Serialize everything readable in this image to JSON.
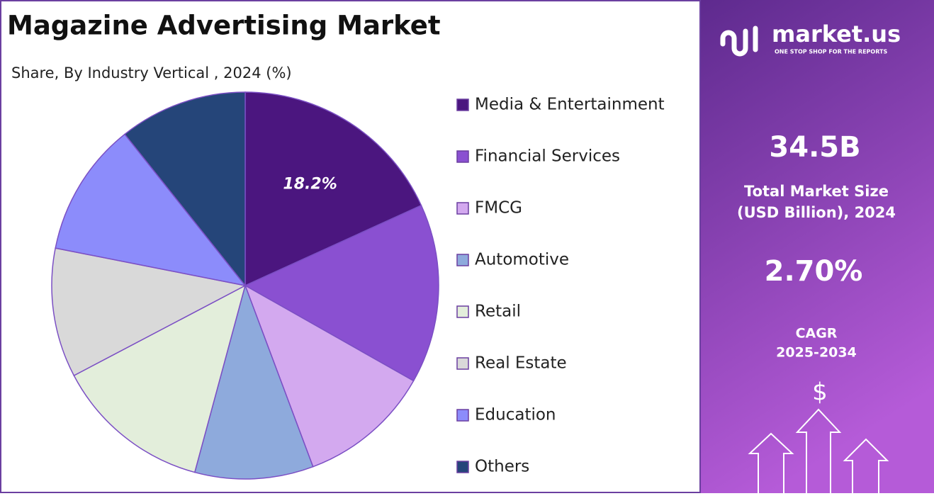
{
  "chart_data": {
    "type": "pie",
    "title": "Magazine Advertising Market",
    "subtitle": "Share, By Industry Vertical , 2024 (%)",
    "categories": [
      "Media & Entertainment",
      "Financial Services",
      "FMCG",
      "Automotive",
      "Retail",
      "Real Estate",
      "Education",
      "Others"
    ],
    "values": [
      18.2,
      15.0,
      11.1,
      9.9,
      13.1,
      10.8,
      11.2,
      10.7
    ],
    "value_labels": [
      "18.2%",
      null,
      null,
      null,
      null,
      null,
      null,
      null
    ],
    "colors": [
      "#4b167f",
      "#8a50d1",
      "#d3a9ef",
      "#8eaadc",
      "#e3eedb",
      "#d9d9d9",
      "#8c8cfb",
      "#254579"
    ]
  },
  "panel": {
    "brand": "market.us",
    "tagline": "ONE STOP SHOP FOR THE REPORTS",
    "market_size": "34.5B",
    "market_size_label": [
      "Total Market Size",
      "(USD Billion), 2024"
    ],
    "cagr": "2.70%",
    "cagr_label": [
      "CAGR",
      "2025-2034"
    ],
    "currency_icon": "$"
  }
}
